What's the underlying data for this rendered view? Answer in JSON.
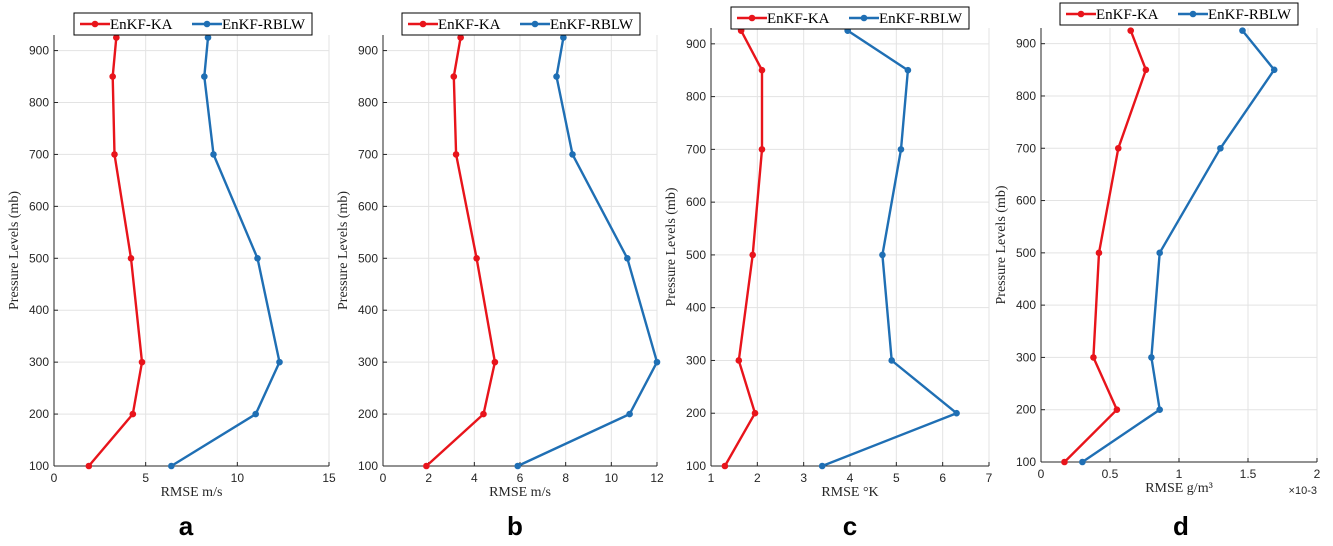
{
  "colors": {
    "enkf_ka": "#e8141b",
    "enkf_rblw": "#1f6fb4"
  },
  "chart_data": [
    {
      "type": "line",
      "panel_label": "a",
      "xlabel": "RMSE m/s",
      "ylabel": "Pressure Levels (mb)",
      "xlim": [
        0,
        15
      ],
      "ylim": [
        100,
        930
      ],
      "xticks": [
        0,
        5,
        10,
        15
      ],
      "yticks": [
        100,
        200,
        300,
        400,
        500,
        600,
        700,
        800,
        900
      ],
      "xtick_labels": [
        "0",
        "5",
        "10",
        "15"
      ],
      "y": [
        100,
        200,
        300,
        500,
        700,
        850,
        925
      ],
      "grid": true,
      "legend_position": "top",
      "series": [
        {
          "name": "EnKF-KA",
          "values": [
            1.9,
            4.3,
            4.8,
            4.2,
            3.3,
            3.2,
            3.4
          ]
        },
        {
          "name": "EnKF-RBLW",
          "values": [
            6.4,
            11.0,
            12.3,
            11.1,
            8.7,
            8.2,
            8.4
          ]
        }
      ]
    },
    {
      "type": "line",
      "panel_label": "b",
      "xlabel": "RMSE m/s",
      "ylabel": "Pressure Levels (mb)",
      "xlim": [
        0,
        12
      ],
      "ylim": [
        100,
        930
      ],
      "xticks": [
        0,
        2,
        4,
        6,
        8,
        10,
        12
      ],
      "yticks": [
        100,
        200,
        300,
        400,
        500,
        600,
        700,
        800,
        900
      ],
      "xtick_labels": [
        "0",
        "2",
        "4",
        "6",
        "8",
        "10",
        "12"
      ],
      "y": [
        100,
        200,
        300,
        500,
        700,
        850,
        925
      ],
      "grid": true,
      "legend_position": "top",
      "series": [
        {
          "name": "EnKF-KA",
          "values": [
            1.9,
            4.4,
            4.9,
            4.1,
            3.2,
            3.1,
            3.4
          ]
        },
        {
          "name": "EnKF-RBLW",
          "values": [
            5.9,
            10.8,
            12.0,
            10.7,
            8.3,
            7.6,
            7.9
          ]
        }
      ]
    },
    {
      "type": "line",
      "panel_label": "c",
      "xlabel": "RMSE °K",
      "ylabel": "Pressure Levels (mb)",
      "xlim": [
        1,
        7
      ],
      "ylim": [
        100,
        930
      ],
      "xticks": [
        1,
        2,
        3,
        4,
        5,
        6,
        7
      ],
      "yticks": [
        100,
        200,
        300,
        400,
        500,
        600,
        700,
        800,
        900
      ],
      "xtick_labels": [
        "1",
        "2",
        "3",
        "4",
        "5",
        "6",
        "7"
      ],
      "y": [
        100,
        200,
        300,
        500,
        700,
        850,
        925
      ],
      "grid": true,
      "legend_position": "top",
      "series": [
        {
          "name": "EnKF-KA",
          "values": [
            1.3,
            1.95,
            1.6,
            1.9,
            2.1,
            2.1,
            1.65
          ]
        },
        {
          "name": "EnKF-RBLW",
          "values": [
            3.4,
            6.3,
            4.9,
            4.7,
            5.1,
            5.25,
            3.95
          ]
        }
      ]
    },
    {
      "type": "line",
      "panel_label": "d",
      "xlabel": "RMSE g/m³",
      "ylabel": "Pressure Levels (mb)",
      "xlim": [
        0,
        0.002
      ],
      "ylim": [
        100,
        930
      ],
      "xticks": [
        0,
        0.0005,
        0.001,
        0.0015,
        0.002
      ],
      "yticks": [
        100,
        200,
        300,
        400,
        500,
        600,
        700,
        800,
        900
      ],
      "xtick_labels": [
        "0",
        "0.5",
        "1",
        "1.5",
        "2"
      ],
      "x_exponent_label": "×10-3",
      "y": [
        100,
        200,
        300,
        500,
        700,
        850,
        925
      ],
      "grid": true,
      "legend_position": "top",
      "series": [
        {
          "name": "EnKF-KA",
          "values": [
            0.00017,
            0.00055,
            0.00038,
            0.00042,
            0.00056,
            0.00076,
            0.00065
          ]
        },
        {
          "name": "EnKF-RBLW",
          "values": [
            0.0003,
            0.00086,
            0.0008,
            0.00086,
            0.0013,
            0.00169,
            0.00146
          ]
        }
      ]
    }
  ]
}
